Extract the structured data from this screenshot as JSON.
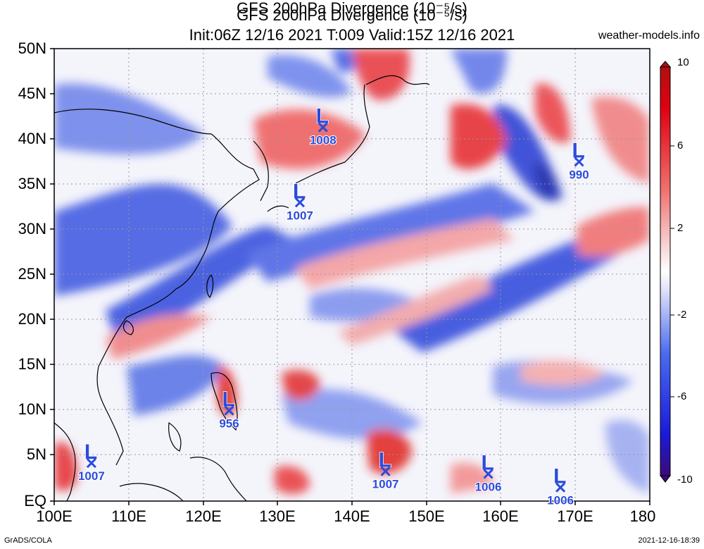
{
  "title_line1": "GFS 200hPa Divergence (10⁻⁵/s)",
  "title_line2": "Init:06Z 12/16 2021 T:009 Valid:15Z 12/16 2021",
  "website": "weather-models.info",
  "credit": "GrADS/COLA",
  "timestamp": "2021-12-16-18:39",
  "lat_labels": [
    "50N",
    "45N",
    "40N",
    "35N",
    "30N",
    "25N",
    "20N",
    "15N",
    "10N",
    "5N",
    "EQ"
  ],
  "lon_labels": [
    "100E",
    "110E",
    "120E",
    "130E",
    "140E",
    "150E",
    "160E",
    "170E",
    "180"
  ],
  "colorbar_labels": [
    "10",
    "6",
    "2",
    "-2",
    "-6",
    "-10"
  ],
  "colors": {
    "positive": "#e0201f",
    "negative": "#1f3fd8",
    "low_marker": "#2a4bdc"
  },
  "lows": [
    {
      "pressure": "1008",
      "lon": 136.1,
      "lat": 41.3
    },
    {
      "pressure": "1007",
      "lon": 133.0,
      "lat": 33.0
    },
    {
      "pressure": "990",
      "lon": 170.5,
      "lat": 37.5
    },
    {
      "pressure": "956",
      "lon": 123.5,
      "lat": 10.0
    },
    {
      "pressure": "1007",
      "lon": 105.0,
      "lat": 4.2
    },
    {
      "pressure": "1007",
      "lon": 144.5,
      "lat": 3.3
    },
    {
      "pressure": "1006",
      "lon": 158.3,
      "lat": 3.0
    },
    {
      "pressure": "1006",
      "lon": 168.0,
      "lat": 1.5
    }
  ]
}
